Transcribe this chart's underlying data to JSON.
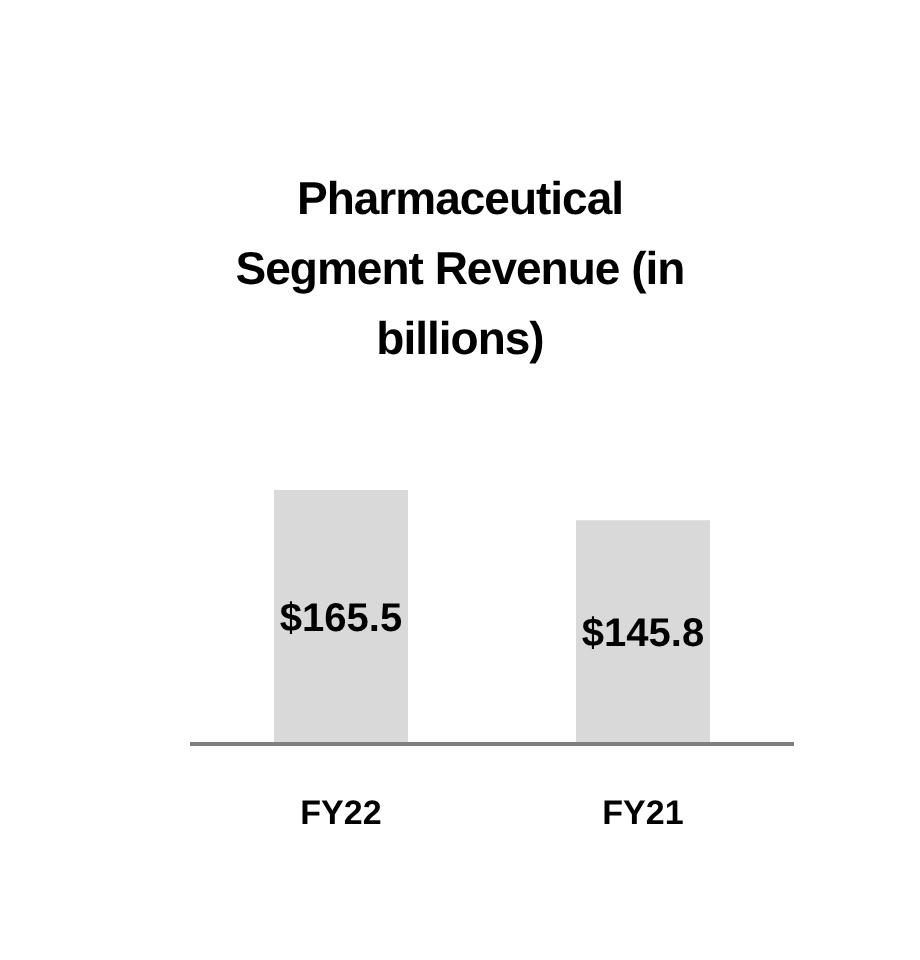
{
  "chart_data": {
    "type": "bar",
    "title": "Pharmaceutical Segment Revenue (in billions)",
    "categories": [
      "FY22",
      "FY21"
    ],
    "values": [
      165.5,
      145.8
    ],
    "value_labels": [
      "$165.5",
      "$145.8"
    ],
    "color": "#d9d9d9"
  }
}
